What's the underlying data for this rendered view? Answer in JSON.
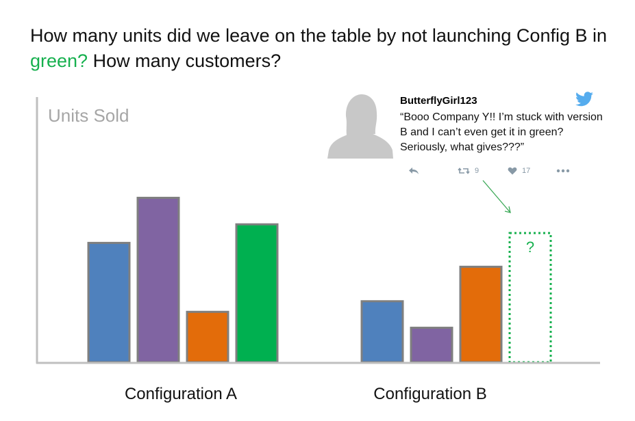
{
  "question": {
    "before": "How many units did we leave on the table by not launching Config B in ",
    "highlight": "green?",
    "after": " How many customers?"
  },
  "tweet": {
    "username": "ButterflyGirl123",
    "text": "“Booo Company Y!! I’m stuck with version B and I can’t even get it in green? Seriously, what gives???”",
    "retweets": "9",
    "likes": "17"
  },
  "colors": {
    "blue": "#4f81bd",
    "purple": "#8064a2",
    "orange": "#e36c0a",
    "green": "#00b050",
    "bar_border": "#7f7f7f",
    "axis": "#bfbfbf",
    "missing": "#16b04e",
    "highlight": "#16b04e"
  },
  "chart_data": {
    "type": "bar",
    "ylabel": "Units Sold",
    "ylim": [
      0,
      100
    ],
    "groups": [
      {
        "label": "Configuration A",
        "bars": [
          {
            "color": "blue",
            "value": 45
          },
          {
            "color": "purple",
            "value": 62
          },
          {
            "color": "orange",
            "value": 19
          },
          {
            "color": "green",
            "value": 52
          }
        ]
      },
      {
        "label": "Configuration B",
        "bars": [
          {
            "color": "blue",
            "value": 23
          },
          {
            "color": "purple",
            "value": 13
          },
          {
            "color": "orange",
            "value": 36
          },
          {
            "color": "green",
            "value": null,
            "label": "?"
          }
        ]
      }
    ]
  }
}
